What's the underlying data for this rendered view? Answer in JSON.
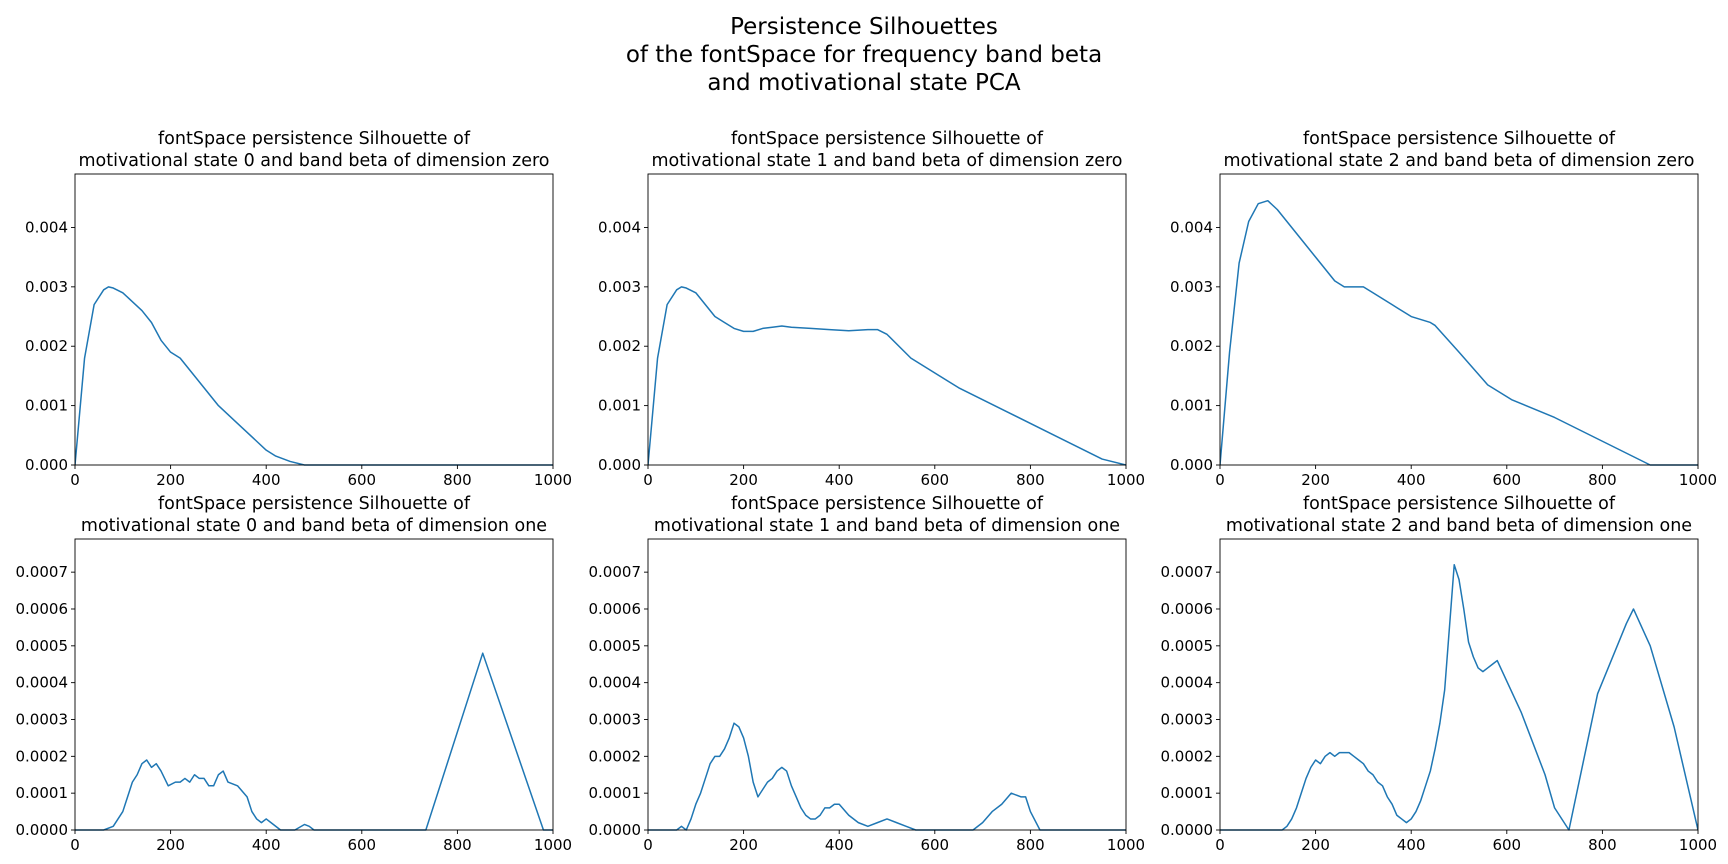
{
  "figure": {
    "suptitle_lines": [
      "Persistence Silhouettes",
      "of the fontSpace for frequency band beta",
      "and motivational state PCA"
    ]
  },
  "chart_data": [
    {
      "type": "line",
      "title_lines": [
        "fontSpace persistence Silhouette of",
        "motivational state 0 and band beta of dimension zero"
      ],
      "xlim": [
        0,
        1000
      ],
      "ylim": [
        0,
        0.0049
      ],
      "xticks": [
        0,
        200,
        400,
        600,
        800,
        1000
      ],
      "yticks": [
        0.0,
        0.001,
        0.002,
        0.003,
        0.004
      ],
      "ytick_labels": [
        "0.000",
        "0.001",
        "0.002",
        "0.003",
        "0.004"
      ],
      "color": "#1f77b4",
      "x": [
        0,
        20,
        40,
        60,
        70,
        80,
        100,
        120,
        140,
        160,
        180,
        200,
        220,
        240,
        260,
        300,
        340,
        380,
        400,
        420,
        450,
        480,
        500,
        700,
        1000
      ],
      "y": [
        0,
        0.0018,
        0.0027,
        0.00295,
        0.003,
        0.00298,
        0.0029,
        0.00275,
        0.0026,
        0.0024,
        0.0021,
        0.0019,
        0.0018,
        0.0016,
        0.0014,
        0.001,
        0.0007,
        0.0004,
        0.00025,
        0.00015,
        6e-05,
        0.0,
        0,
        0,
        0
      ]
    },
    {
      "type": "line",
      "title_lines": [
        "fontSpace persistence Silhouette of",
        "motivational state 1 and band beta of dimension zero"
      ],
      "xlim": [
        0,
        1000
      ],
      "ylim": [
        0,
        0.0049
      ],
      "xticks": [
        0,
        200,
        400,
        600,
        800,
        1000
      ],
      "yticks": [
        0.0,
        0.001,
        0.002,
        0.003,
        0.004
      ],
      "ytick_labels": [
        "0.000",
        "0.001",
        "0.002",
        "0.003",
        "0.004"
      ],
      "color": "#1f77b4",
      "x": [
        0,
        20,
        40,
        60,
        70,
        80,
        100,
        120,
        140,
        160,
        180,
        200,
        220,
        240,
        260,
        280,
        300,
        340,
        380,
        420,
        460,
        480,
        500,
        550,
        650,
        750,
        850,
        950,
        1000
      ],
      "y": [
        0,
        0.0018,
        0.0027,
        0.00295,
        0.003,
        0.00298,
        0.0029,
        0.0027,
        0.0025,
        0.0024,
        0.0023,
        0.00225,
        0.00225,
        0.0023,
        0.00232,
        0.00234,
        0.00232,
        0.0023,
        0.00228,
        0.00226,
        0.00228,
        0.00228,
        0.0022,
        0.0018,
        0.0013,
        0.0009,
        0.0005,
        0.0001,
        0.0
      ]
    },
    {
      "type": "line",
      "title_lines": [
        "fontSpace persistence Silhouette of",
        "motivational state 2 and band beta of dimension zero"
      ],
      "xlim": [
        0,
        1000
      ],
      "ylim": [
        0,
        0.0049
      ],
      "xticks": [
        0,
        200,
        400,
        600,
        800,
        1000
      ],
      "yticks": [
        0.0,
        0.001,
        0.002,
        0.003,
        0.004
      ],
      "ytick_labels": [
        "0.000",
        "0.001",
        "0.002",
        "0.003",
        "0.004"
      ],
      "color": "#1f77b4",
      "x": [
        0,
        20,
        40,
        60,
        80,
        100,
        120,
        140,
        160,
        180,
        200,
        220,
        240,
        260,
        280,
        300,
        320,
        360,
        400,
        440,
        450,
        500,
        560,
        610,
        700,
        800,
        900,
        1000
      ],
      "y": [
        0,
        0.0019,
        0.0034,
        0.0041,
        0.0044,
        0.00445,
        0.0043,
        0.0041,
        0.0039,
        0.0037,
        0.0035,
        0.0033,
        0.0031,
        0.003,
        0.003,
        0.003,
        0.0029,
        0.0027,
        0.0025,
        0.0024,
        0.00235,
        0.0019,
        0.00135,
        0.0011,
        0.0008,
        0.0004,
        0.0,
        0.0
      ]
    },
    {
      "type": "line",
      "title_lines": [
        "fontSpace persistence Silhouette of",
        "motivational state 0 and band beta of dimension one"
      ],
      "xlim": [
        0,
        1000
      ],
      "ylim": [
        0,
        0.00079
      ],
      "xticks": [
        0,
        200,
        400,
        600,
        800,
        1000
      ],
      "yticks": [
        0.0,
        0.0001,
        0.0002,
        0.0003,
        0.0004,
        0.0005,
        0.0006,
        0.0007
      ],
      "ytick_labels": [
        "0.0000",
        "0.0001",
        "0.0002",
        "0.0003",
        "0.0004",
        "0.0005",
        "0.0006",
        "0.0007"
      ],
      "color": "#1f77b4",
      "x": [
        0,
        60,
        80,
        100,
        110,
        120,
        130,
        140,
        150,
        160,
        170,
        180,
        195,
        210,
        220,
        230,
        240,
        250,
        260,
        270,
        280,
        290,
        300,
        310,
        320,
        340,
        360,
        370,
        380,
        390,
        400,
        410,
        430,
        440,
        460,
        480,
        490,
        500,
        520,
        600,
        734,
        853,
        980,
        1000
      ],
      "y": [
        0,
        0,
        1e-05,
        5e-05,
        9e-05,
        0.00013,
        0.00015,
        0.00018,
        0.00019,
        0.00017,
        0.00018,
        0.00016,
        0.00012,
        0.00013,
        0.00013,
        0.00014,
        0.00013,
        0.00015,
        0.00014,
        0.00014,
        0.00012,
        0.00012,
        0.00015,
        0.00016,
        0.00013,
        0.00012,
        9e-05,
        5e-05,
        3e-05,
        2e-05,
        3e-05,
        2e-05,
        0.0,
        0.0,
        0.0,
        1.5e-05,
        1e-05,
        0.0,
        0.0,
        0.0,
        0.0,
        0.00048,
        0.0,
        0.0
      ]
    },
    {
      "type": "line",
      "title_lines": [
        "fontSpace persistence Silhouette of",
        "motivational state 1 and band beta of dimension one"
      ],
      "xlim": [
        0,
        1000
      ],
      "ylim": [
        0,
        0.00079
      ],
      "xticks": [
        0,
        200,
        400,
        600,
        800,
        1000
      ],
      "yticks": [
        0.0,
        0.0001,
        0.0002,
        0.0003,
        0.0004,
        0.0005,
        0.0006,
        0.0007
      ],
      "ytick_labels": [
        "0.0000",
        "0.0001",
        "0.0002",
        "0.0003",
        "0.0004",
        "0.0005",
        "0.0006",
        "0.0007"
      ],
      "color": "#1f77b4",
      "x": [
        0,
        60,
        70,
        80,
        90,
        100,
        110,
        120,
        130,
        140,
        150,
        160,
        170,
        180,
        190,
        200,
        210,
        220,
        230,
        240,
        250,
        260,
        270,
        280,
        290,
        300,
        310,
        320,
        330,
        340,
        350,
        360,
        370,
        380,
        390,
        400,
        420,
        440,
        460,
        480,
        500,
        520,
        540,
        560,
        580,
        600,
        620,
        640,
        660,
        680,
        700,
        720,
        740,
        760,
        780,
        790,
        800,
        820,
        1000
      ],
      "y": [
        0,
        0,
        1e-05,
        0.0,
        3e-05,
        7e-05,
        0.0001,
        0.00014,
        0.00018,
        0.0002,
        0.0002,
        0.00022,
        0.00025,
        0.00029,
        0.00028,
        0.00025,
        0.0002,
        0.00013,
        9e-05,
        0.00011,
        0.00013,
        0.00014,
        0.00016,
        0.00017,
        0.00016,
        0.00012,
        9e-05,
        6e-05,
        4e-05,
        3e-05,
        3e-05,
        4e-05,
        6e-05,
        6e-05,
        7e-05,
        7e-05,
        4e-05,
        2e-05,
        1e-05,
        2e-05,
        3e-05,
        2e-05,
        1e-05,
        0.0,
        0.0,
        0.0,
        0.0,
        0.0,
        0.0,
        0.0,
        2e-05,
        5e-05,
        7e-05,
        0.0001,
        9e-05,
        9e-05,
        5e-05,
        0.0,
        0.0
      ]
    },
    {
      "type": "line",
      "title_lines": [
        "fontSpace persistence Silhouette of",
        "motivational state 2 and band beta of dimension one"
      ],
      "xlim": [
        0,
        1000
      ],
      "ylim": [
        0,
        0.00079
      ],
      "xticks": [
        0,
        200,
        400,
        600,
        800,
        1000
      ],
      "yticks": [
        0.0,
        0.0001,
        0.0002,
        0.0003,
        0.0004,
        0.0005,
        0.0006,
        0.0007
      ],
      "ytick_labels": [
        "0.0000",
        "0.0001",
        "0.0002",
        "0.0003",
        "0.0004",
        "0.0005",
        "0.0006",
        "0.0007"
      ],
      "color": "#1f77b4",
      "x": [
        0,
        130,
        140,
        150,
        160,
        170,
        180,
        190,
        200,
        210,
        220,
        230,
        240,
        250,
        260,
        270,
        280,
        290,
        300,
        310,
        320,
        330,
        340,
        350,
        360,
        370,
        380,
        390,
        400,
        410,
        420,
        430,
        440,
        450,
        460,
        470,
        480,
        490,
        500,
        510,
        520,
        530,
        540,
        550,
        560,
        570,
        580,
        630,
        680,
        700,
        730,
        790,
        850,
        865,
        900,
        950,
        1000
      ],
      "y": [
        0,
        0,
        1e-05,
        3e-05,
        6e-05,
        0.0001,
        0.00014,
        0.00017,
        0.00019,
        0.00018,
        0.0002,
        0.00021,
        0.0002,
        0.00021,
        0.00021,
        0.00021,
        0.0002,
        0.00019,
        0.00018,
        0.00016,
        0.00015,
        0.00013,
        0.00012,
        9e-05,
        7e-05,
        4e-05,
        3e-05,
        2e-05,
        3e-05,
        5e-05,
        8e-05,
        0.00012,
        0.00016,
        0.00022,
        0.00029,
        0.00038,
        0.00055,
        0.00072,
        0.00068,
        0.0006,
        0.00051,
        0.00047,
        0.00044,
        0.00043,
        0.00044,
        0.00045,
        0.00046,
        0.00032,
        0.00015,
        6e-05,
        0.0,
        0.00037,
        0.00056,
        0.0006,
        0.0005,
        0.00028,
        0.0
      ]
    }
  ]
}
